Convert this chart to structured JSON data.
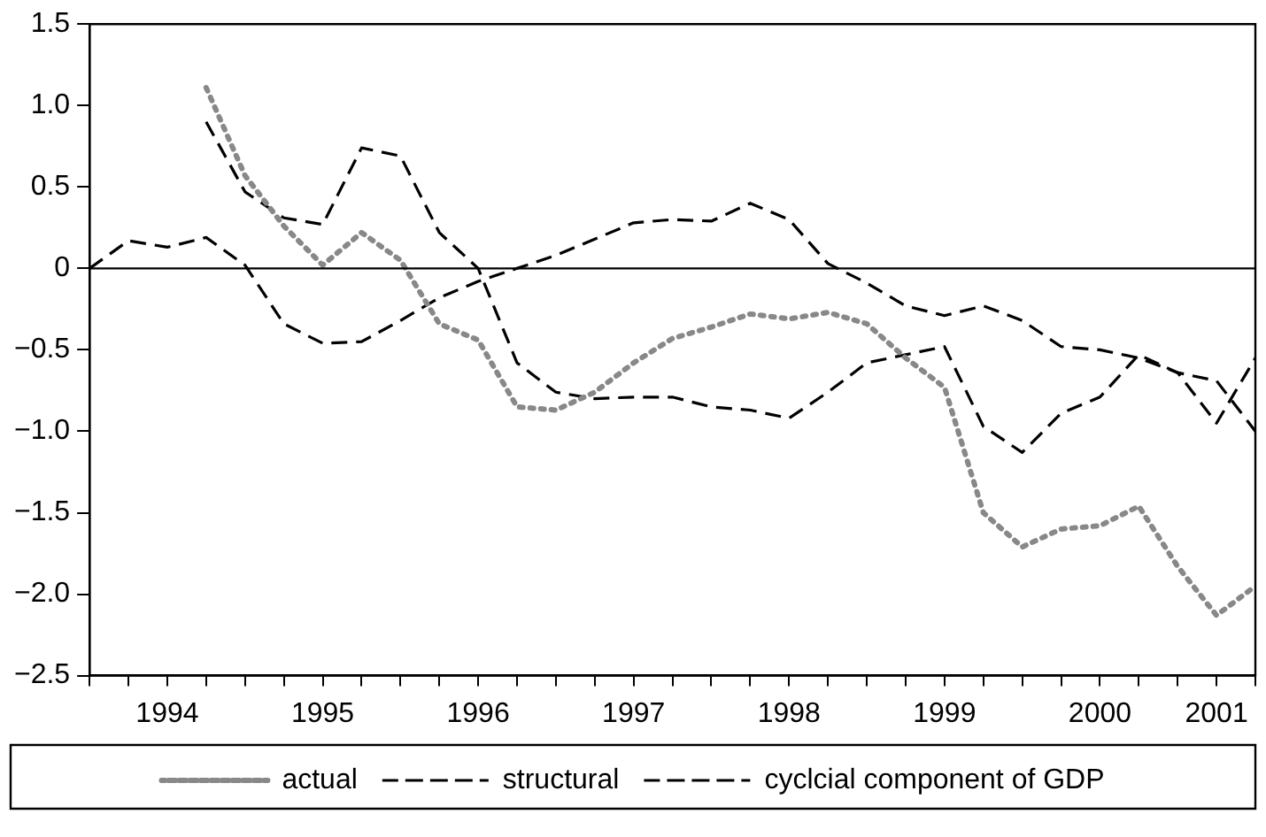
{
  "chart_data": {
    "type": "line",
    "xlim": [
      1994,
      2001.5
    ],
    "xticks": [
      {
        "value": 1994,
        "label": null
      },
      {
        "value": 1994.25,
        "label": null
      },
      {
        "value": 1994.5,
        "label": "1994"
      },
      {
        "value": 1994.75,
        "label": null
      },
      {
        "value": 1995,
        "label": null
      },
      {
        "value": 1995.25,
        "label": null
      },
      {
        "value": 1995.5,
        "label": "1995"
      },
      {
        "value": 1995.75,
        "label": null
      },
      {
        "value": 1996,
        "label": null
      },
      {
        "value": 1996.25,
        "label": null
      },
      {
        "value": 1996.5,
        "label": "1996"
      },
      {
        "value": 1996.75,
        "label": null
      },
      {
        "value": 1997,
        "label": null
      },
      {
        "value": 1997.25,
        "label": null
      },
      {
        "value": 1997.5,
        "label": "1997"
      },
      {
        "value": 1997.75,
        "label": null
      },
      {
        "value": 1998,
        "label": null
      },
      {
        "value": 1998.25,
        "label": null
      },
      {
        "value": 1998.5,
        "label": "1998"
      },
      {
        "value": 1998.75,
        "label": null
      },
      {
        "value": 1999,
        "label": null
      },
      {
        "value": 1999.25,
        "label": null
      },
      {
        "value": 1999.5,
        "label": "1999"
      },
      {
        "value": 1999.75,
        "label": null
      },
      {
        "value": 2000,
        "label": null
      },
      {
        "value": 2000.25,
        "label": null
      },
      {
        "value": 2000.5,
        "label": "2000"
      },
      {
        "value": 2000.75,
        "label": null
      },
      {
        "value": 2001,
        "label": null
      },
      {
        "value": 2001.25,
        "label": "2001"
      },
      {
        "value": 2001.5,
        "label": null
      }
    ],
    "ylim": [
      -2.5,
      1.5
    ],
    "yticks": [
      1.5,
      {
        "value": 1,
        "label": "1.0"
      },
      {
        "value": 0.5,
        "label": "0.5"
      },
      0,
      {
        "value": -0.5,
        "label": "−0.5"
      },
      {
        "value": -1,
        "label": "−1.0"
      },
      {
        "value": -1.5,
        "label": "−1.5"
      },
      {
        "value": -2,
        "label": "−2.0"
      },
      {
        "value": -2.5,
        "label": "−2.5"
      }
    ],
    "legend": "bottom",
    "marker": "none",
    "ref_lines": [
      {
        "axis": "y",
        "value": 0,
        "color": "#000000"
      }
    ],
    "x": [
      1994,
      1994.25,
      1994.5,
      1994.75,
      1995,
      1995.25,
      1995.5,
      1995.75,
      1996,
      1996.25,
      1996.5,
      1996.75,
      1997,
      1997.25,
      1997.5,
      1997.75,
      1998,
      1998.25,
      1998.5,
      1998.75,
      1999,
      1999.25,
      1999.5,
      1999.75,
      2000,
      2000.25,
      2000.5,
      2000.75,
      2001,
      2001.25,
      2001.5
    ],
    "series": [
      {
        "name": "actual",
        "color": "#888888",
        "line_style": "dotted",
        "values": [
          null,
          null,
          null,
          1.11,
          0.57,
          0.26,
          0.02,
          0.22,
          0.05,
          -0.34,
          -0.44,
          -0.85,
          -0.87,
          -0.76,
          -0.58,
          -0.43,
          -0.36,
          -0.28,
          -0.31,
          -0.27,
          -0.34,
          -0.55,
          -0.73,
          -1.5,
          -1.71,
          -1.6,
          -1.58,
          -1.46,
          -1.83,
          -2.13,
          -1.95
        ]
      },
      {
        "name": "structural",
        "color": "#000000",
        "line_style": "dashed",
        "values": [
          null,
          null,
          null,
          0.9,
          0.47,
          0.31,
          0.27,
          0.74,
          0.69,
          0.22,
          0.0,
          -0.58,
          -0.76,
          -0.8,
          -0.79,
          -0.79,
          -0.85,
          -0.87,
          -0.92,
          -0.76,
          -0.58,
          -0.53,
          -0.48,
          -0.97,
          -1.13,
          -0.89,
          -0.79,
          -0.53,
          -0.64,
          -0.95,
          -0.55
        ]
      },
      {
        "name": "cyclcial component of GDP",
        "color": "#000000",
        "line_style": "dashed",
        "values": [
          0.0,
          0.17,
          0.13,
          0.19,
          0.02,
          -0.34,
          -0.46,
          -0.45,
          -0.32,
          -0.18,
          -0.08,
          0.0,
          0.08,
          0.18,
          0.28,
          0.3,
          0.29,
          0.4,
          0.3,
          0.03,
          -0.09,
          -0.23,
          -0.29,
          -0.23,
          -0.32,
          -0.48,
          -0.5,
          -0.55,
          -0.64,
          -0.69,
          -1.0
        ]
      }
    ]
  }
}
